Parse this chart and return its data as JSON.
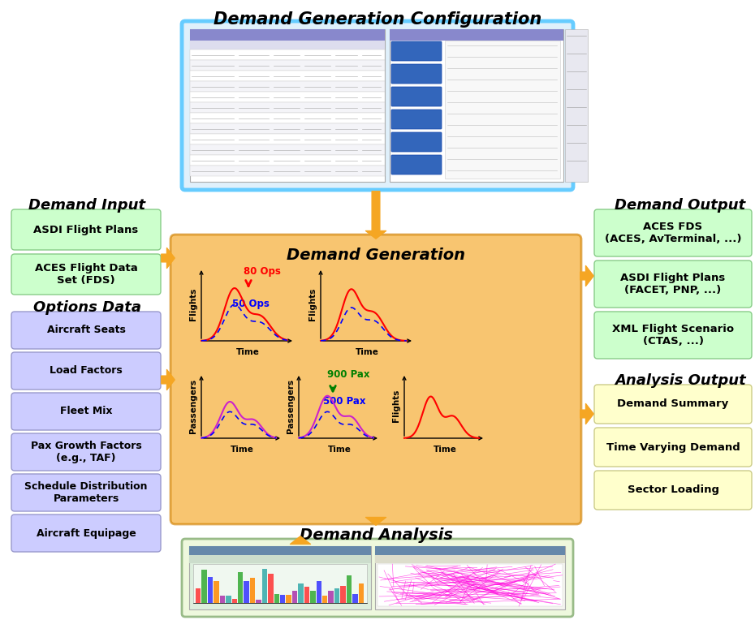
{
  "title": "Demand Generation Configuration",
  "demand_generation_title": "Demand Generation",
  "demand_analysis_title": "Demand Analysis",
  "demand_input_title": "Demand Input",
  "demand_output_title": "Demand Output",
  "options_data_title": "Options Data",
  "analysis_output_title": "Analysis Output",
  "demand_input_boxes": [
    "ASDI Flight Plans",
    "ACES Flight Data\nSet (FDS)"
  ],
  "options_data_boxes": [
    "Aircraft Seats",
    "Load Factors",
    "Fleet Mix",
    "Pax Growth Factors\n(e.g., TAF)",
    "Schedule Distribution\nParameters",
    "Aircraft Equipage"
  ],
  "demand_output_boxes": [
    "ACES FDS\n(ACES, AvTerminal, ...)",
    "ASDI Flight Plans\n(FACET, PNP, ...)",
    "XML Flight Scenario\n(CTAS, ...)"
  ],
  "analysis_output_boxes": [
    "Demand Summary",
    "Time Varying Demand",
    "Sector Loading"
  ],
  "input_box_color": "#ccffcc",
  "options_box_color": "#ccccff",
  "output_box_color": "#ccffcc",
  "analysis_output_box_color": "#ffffcc",
  "arrow_color": "#f5a623",
  "annotation_80ops": "80 Ops",
  "annotation_50ops": "50 Ops",
  "annotation_900pax": "900 Pax",
  "annotation_500pax": "500 Pax",
  "bg_color": "#ffffff"
}
